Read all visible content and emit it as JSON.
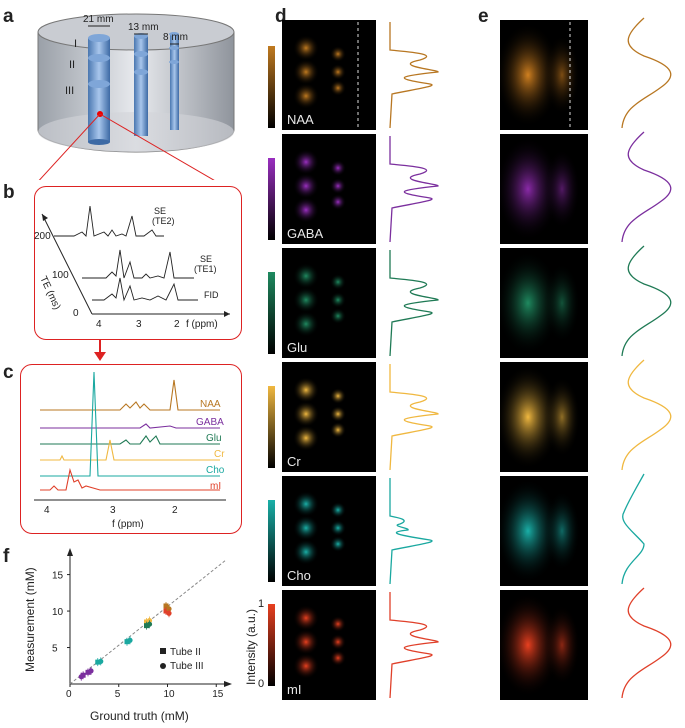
{
  "panels": {
    "a": "a",
    "b": "b",
    "c": "c",
    "d": "d",
    "e": "e",
    "f": "f"
  },
  "panel_a": {
    "dims": [
      "21 mm",
      "13 mm",
      "8 mm"
    ],
    "tubes": [
      "I",
      "II",
      "III"
    ]
  },
  "panel_b": {
    "traces": [
      "SE\n(TE2)",
      "SE\n(TE1)",
      "FID"
    ],
    "trace_line1": [
      "SE",
      "SE",
      "FID"
    ],
    "trace_line2": [
      "(TE2)",
      "(TE1)",
      ""
    ],
    "te_axis_label": "TE (ms)",
    "te_ticks": [
      "200",
      "100",
      "0"
    ],
    "f_ticks": [
      "4",
      "3",
      "2"
    ],
    "f_label": "f (ppm)"
  },
  "panel_c": {
    "metabolites": [
      "NAA",
      "GABA",
      "Glu",
      "Cr",
      "Cho",
      "mI"
    ],
    "colors": {
      "NAA": "#b87722",
      "GABA": "#7b2f9e",
      "Glu": "#1f7a55",
      "Cr": "#f0b840",
      "Cho": "#1aa8a0",
      "mI": "#e0402a"
    },
    "x_ticks": [
      "4",
      "3",
      "2"
    ],
    "x_label": "f (ppm)"
  },
  "panel_d": {
    "intensity_label": "Intensity (a.u.)",
    "scale_top": "1",
    "scale_bottom": "0"
  },
  "panel_f": {
    "ylabel": "Measurement (mM)",
    "xlabel": "Ground truth (mM)",
    "x_ticks": [
      "0",
      "5",
      "10",
      "15"
    ],
    "y_ticks": [
      "5",
      "10",
      "15"
    ],
    "legend": [
      "Tube II",
      "Tube III"
    ]
  },
  "chart_data": {
    "type": "scatter",
    "xlabel": "Ground truth (mM)",
    "ylabel": "Measurement (mM)",
    "xlim": [
      0,
      16
    ],
    "ylim": [
      0,
      17
    ],
    "series": [
      {
        "name": "Tube II",
        "x": [
          1.5,
          2.0,
          3.0,
          6.0,
          8.0,
          8.0,
          10.0,
          10.0
        ],
        "y": [
          1.2,
          1.6,
          3.0,
          5.8,
          8.5,
          8.0,
          10.7,
          10.0
        ]
      },
      {
        "name": "Tube III",
        "x": [
          1.0,
          2.0,
          3.0,
          6.0,
          8.0,
          8.0,
          10.0,
          10.0
        ],
        "y": [
          1.0,
          1.8,
          3.1,
          6.0,
          8.7,
          8.2,
          10.3,
          9.7
        ]
      }
    ]
  }
}
